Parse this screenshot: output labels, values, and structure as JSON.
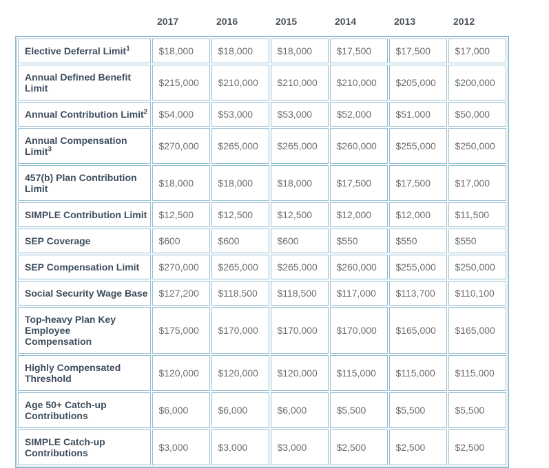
{
  "colors": {
    "table_border": "#93BCD3",
    "year_header_text": "#48525A",
    "row_label_text": "#3D4D5D",
    "value_text": "#6B6D6F",
    "cell_background": "#FFFFFF",
    "page_background": "#FFFFFF"
  },
  "chart_data": {
    "type": "table",
    "title": "",
    "columns": [
      "2017",
      "2016",
      "2015",
      "2014",
      "2013",
      "2012"
    ],
    "rows": [
      {
        "label": "Elective Deferral Limit",
        "superscript": "1",
        "values": [
          "$18,000",
          "$18,000",
          "$18,000",
          "$17,500",
          "$17,500",
          "$17,000"
        ]
      },
      {
        "label": "Annual Defined Benefit Limit",
        "label_lines": [
          "Annual Defined Benefit",
          "Limit"
        ],
        "superscript": "",
        "values": [
          "$215,000",
          "$210,000",
          "$210,000",
          "$210,000",
          "$205,000",
          "$200,000"
        ]
      },
      {
        "label": "Annual Contribution Limit",
        "superscript": "2",
        "values": [
          "$54,000",
          "$53,000",
          "$53,000",
          "$52,000",
          "$51,000",
          "$50,000"
        ]
      },
      {
        "label": "Annual Compensation Limit",
        "label_lines": [
          "Annual Compensation",
          "Limit"
        ],
        "superscript": "3",
        "values": [
          "$270,000",
          "$265,000",
          "$265,000",
          "$260,000",
          "$255,000",
          "$250,000"
        ]
      },
      {
        "label": "457(b) Plan Contribution Limit",
        "label_lines": [
          "457(b) Plan Contribution",
          "Limit"
        ],
        "superscript": "",
        "values": [
          "$18,000",
          "$18,000",
          "$18,000",
          "$17,500",
          "$17,500",
          "$17,000"
        ]
      },
      {
        "label": "SIMPLE Contribution Limit",
        "superscript": "",
        "values": [
          "$12,500",
          "$12,500",
          "$12,500",
          "$12,000",
          "$12,000",
          "$11,500"
        ]
      },
      {
        "label": "SEP Coverage",
        "superscript": "",
        "values": [
          "$600",
          "$600",
          "$600",
          "$550",
          "$550",
          "$550"
        ]
      },
      {
        "label": "SEP Compensation Limit",
        "superscript": "",
        "values": [
          "$270,000",
          "$265,000",
          "$265,000",
          "$260,000",
          "$255,000",
          "$250,000"
        ]
      },
      {
        "label": "Social Security Wage Base",
        "superscript": "",
        "values": [
          "$127,200",
          "$118,500",
          "$118,500",
          "$117,000",
          "$113,700",
          "$110,100"
        ]
      },
      {
        "label": "Top-heavy Plan Key Employee Compensation",
        "label_lines": [
          "Top-heavy Plan Key",
          "Employee",
          "Compensation"
        ],
        "superscript": "",
        "values": [
          "$175,000",
          "$170,000",
          "$170,000",
          "$170,000",
          "$165,000",
          "$165,000"
        ]
      },
      {
        "label": "Highly Compensated Threshold",
        "label_lines": [
          "Highly Compensated",
          "Threshold"
        ],
        "superscript": "",
        "values": [
          "$120,000",
          "$120,000",
          "$120,000",
          "$115,000",
          "$115,000",
          "$115,000"
        ]
      },
      {
        "label": "Age 50+ Catch-up Contributions",
        "label_lines": [
          "Age 50+ Catch-up",
          "Contributions"
        ],
        "superscript": "",
        "values": [
          "$6,000",
          "$6,000",
          "$6,000",
          "$5,500",
          "$5,500",
          "$5,500"
        ]
      },
      {
        "label": "SIMPLE Catch-up Contributions",
        "label_lines": [
          "SIMPLE Catch-up",
          "Contributions"
        ],
        "superscript": "",
        "values": [
          "$3,000",
          "$3,000",
          "$3,000",
          "$2,500",
          "$2,500",
          "$2,500"
        ]
      }
    ]
  }
}
